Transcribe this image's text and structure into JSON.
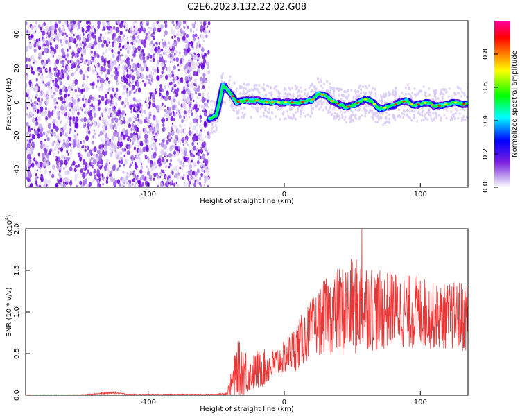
{
  "chart_data": [
    {
      "type": "heatmap",
      "title": "C2E6.2023.132.22.02.G08",
      "xlabel": "Height of straight line (km)",
      "ylabel": "Frequency (Hz)",
      "xlim": [
        -190,
        135
      ],
      "ylim": [
        -50,
        48
      ],
      "x_ticks": [
        "-100",
        "0",
        "100"
      ],
      "y_ticks": [
        "-40",
        "-20",
        "0",
        "20",
        "40"
      ],
      "colorbar": {
        "label": "Normalized spectral amplitude",
        "range": [
          0.0,
          1.0
        ],
        "ticks": [
          "0.0",
          "0.2",
          "0.4",
          "0.6",
          "0.8"
        ],
        "colormap": [
          "#ffffff",
          "#c9b3f0",
          "#7a1fe0",
          "#0000ff",
          "#00ffff",
          "#00ff00",
          "#ffff00",
          "#ff7f00",
          "#ff0000",
          "#ff00a0"
        ]
      },
      "noise_region": {
        "x_from": -190,
        "x_to": -55,
        "freq_from": -50,
        "freq_to": 48
      },
      "signal_track": {
        "x": [
          -55,
          -50,
          -45,
          -40,
          -35,
          -30,
          -20,
          -10,
          0,
          10,
          20,
          25,
          30,
          35,
          40,
          45,
          50,
          55,
          60,
          65,
          70,
          75,
          80,
          85,
          90,
          95,
          100,
          105,
          110,
          115,
          120,
          125,
          130
        ],
        "freq": [
          -10,
          -8,
          10,
          6,
          0,
          1,
          1,
          0,
          0,
          0,
          1,
          5,
          4,
          1,
          -1,
          -3,
          -2,
          0,
          2,
          0,
          -4,
          -3,
          -2,
          0,
          1,
          -2,
          -1,
          0,
          -2,
          -2,
          -1,
          0,
          -1
        ]
      }
    },
    {
      "type": "line",
      "xlabel": "Height of straight line (km)",
      "ylabel": "SNR (10 * v/v)",
      "y_multiplier": "(x10",
      "y_multiplier_exp": "4",
      "y_multiplier_close": ")",
      "xlim": [
        -190,
        135
      ],
      "ylim": [
        0.0,
        2.0
      ],
      "x_ticks": [
        "-100",
        "0",
        "100"
      ],
      "y_ticks": [
        "0.0",
        "0.5",
        "1.0",
        "1.5",
        "2.0"
      ],
      "color": "#ee3333",
      "envelope": {
        "x": [
          -190,
          -150,
          -125,
          -115,
          -90,
          -50,
          -42,
          -40,
          -35,
          -30,
          -25,
          -20,
          -10,
          0,
          10,
          20,
          30,
          40,
          50,
          60,
          70,
          80,
          90,
          100,
          110,
          120,
          135
        ],
        "mean": [
          0.003,
          0.005,
          0.03,
          0.01,
          0.01,
          0.01,
          0.02,
          0.1,
          0.25,
          0.3,
          0.25,
          0.3,
          0.35,
          0.45,
          0.6,
          0.8,
          0.95,
          1.0,
          1.05,
          1.1,
          1.0,
          1.05,
          1.0,
          1.0,
          0.95,
          0.95,
          0.95
        ],
        "spread": [
          0.003,
          0.003,
          0.015,
          0.005,
          0.005,
          0.005,
          0.02,
          0.1,
          0.4,
          0.35,
          0.2,
          0.25,
          0.2,
          0.2,
          0.3,
          0.35,
          0.45,
          0.55,
          0.6,
          0.55,
          0.5,
          0.45,
          0.45,
          0.45,
          0.4,
          0.4,
          0.45
        ]
      },
      "peak": {
        "x": 57,
        "y": 2.0
      }
    }
  ]
}
